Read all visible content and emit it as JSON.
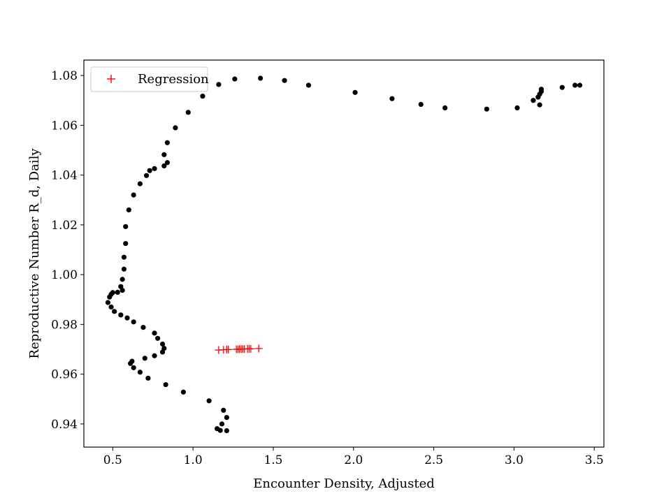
{
  "chart_data": {
    "type": "scatter",
    "title": "",
    "xlabel": "Encounter Density, Adjusted",
    "ylabel": "Reproductive Number R_d, Daily",
    "xlim": [
      0.32,
      3.56
    ],
    "ylim": [
      0.9307,
      1.0862
    ],
    "xticks": [
      0.5,
      1.0,
      1.5,
      2.0,
      2.5,
      3.0,
      3.5
    ],
    "xtick_labels": [
      "0.5",
      "1.0",
      "1.5",
      "2.0",
      "2.5",
      "3.0",
      "3.5"
    ],
    "yticks": [
      0.94,
      0.96,
      0.98,
      1.0,
      1.02,
      1.04,
      1.06,
      1.08
    ],
    "ytick_labels": [
      "0.94",
      "0.96",
      "0.98",
      "1.00",
      "1.02",
      "1.04",
      "1.06",
      "1.08"
    ],
    "grid": false,
    "legend": {
      "placement": "upper-left",
      "entries": [
        "Regression"
      ]
    },
    "series": [
      {
        "color": "#000000",
        "marker": "dot",
        "points": [
          [
            1.17,
            0.9374
          ],
          [
            1.15,
            0.9381
          ],
          [
            1.21,
            0.9373
          ],
          [
            1.18,
            0.94
          ],
          [
            1.21,
            0.9426
          ],
          [
            1.19,
            0.9455
          ],
          [
            1.1,
            0.9493
          ],
          [
            0.94,
            0.9528
          ],
          [
            0.83,
            0.9558
          ],
          [
            0.72,
            0.9584
          ],
          [
            0.67,
            0.9608
          ],
          [
            0.63,
            0.9626
          ],
          [
            0.61,
            0.9643
          ],
          [
            0.62,
            0.9652
          ],
          [
            0.7,
            0.9664
          ],
          [
            0.76,
            0.9674
          ],
          [
            0.81,
            0.9689
          ],
          [
            0.82,
            0.9704
          ],
          [
            0.81,
            0.9721
          ],
          [
            0.78,
            0.9744
          ],
          [
            0.76,
            0.9765
          ],
          [
            0.69,
            0.9788
          ],
          [
            0.63,
            0.981
          ],
          [
            0.59,
            0.9826
          ],
          [
            0.55,
            0.9838
          ],
          [
            0.51,
            0.9852
          ],
          [
            0.49,
            0.987
          ],
          [
            0.47,
            0.9888
          ],
          [
            0.48,
            0.991
          ],
          [
            0.49,
            0.9921
          ],
          [
            0.5,
            0.9928
          ],
          [
            0.53,
            0.9929
          ],
          [
            0.56,
            0.9937
          ],
          [
            0.55,
            0.9952
          ],
          [
            0.56,
            0.9981
          ],
          [
            0.57,
            1.0022
          ],
          [
            0.57,
            1.007
          ],
          [
            0.58,
            1.0125
          ],
          [
            0.58,
            1.0193
          ],
          [
            0.6,
            1.026
          ],
          [
            0.63,
            1.032
          ],
          [
            0.67,
            1.0365
          ],
          [
            0.71,
            1.0398
          ],
          [
            0.73,
            1.0418
          ],
          [
            0.76,
            1.0426
          ],
          [
            0.82,
            1.0437
          ],
          [
            0.84,
            1.045
          ],
          [
            0.82,
            1.0482
          ],
          [
            0.84,
            1.053
          ],
          [
            0.89,
            1.059
          ],
          [
            0.97,
            1.0652
          ],
          [
            1.06,
            1.0717
          ],
          [
            1.16,
            1.0764
          ],
          [
            1.26,
            1.0786
          ],
          [
            1.42,
            1.0789
          ],
          [
            1.57,
            1.078
          ],
          [
            1.72,
            1.0761
          ],
          [
            2.01,
            1.0732
          ],
          [
            2.24,
            1.0707
          ],
          [
            2.42,
            1.0684
          ],
          [
            2.57,
            1.067
          ],
          [
            2.83,
            1.0665
          ],
          [
            3.02,
            1.067
          ],
          [
            3.12,
            1.07
          ],
          [
            3.16,
            1.0682
          ],
          [
            3.15,
            1.0713
          ],
          [
            3.16,
            1.0725
          ],
          [
            3.17,
            1.0736
          ],
          [
            3.17,
            1.0745
          ],
          [
            3.3,
            1.0752
          ],
          [
            3.38,
            1.0761
          ],
          [
            3.41,
            1.0761
          ]
        ]
      },
      {
        "name": "Regression",
        "color": "#ff0000",
        "marker": "plus",
        "points": [
          [
            1.16,
            0.9697
          ],
          [
            1.19,
            0.9698
          ],
          [
            1.21,
            0.9699
          ],
          [
            1.22,
            0.9699
          ],
          [
            1.27,
            0.97
          ],
          [
            1.28,
            0.97
          ],
          [
            1.29,
            0.9701
          ],
          [
            1.3,
            0.9701
          ],
          [
            1.31,
            0.9701
          ],
          [
            1.32,
            0.9701
          ],
          [
            1.34,
            0.9702
          ],
          [
            1.35,
            0.9702
          ],
          [
            1.36,
            0.9702
          ],
          [
            1.41,
            0.9703
          ]
        ]
      }
    ]
  }
}
